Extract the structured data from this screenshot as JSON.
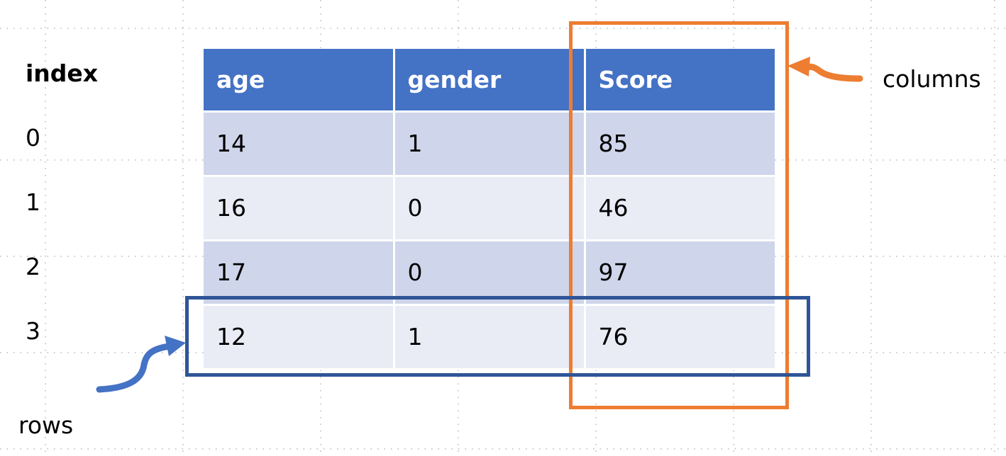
{
  "index": {
    "header": "index",
    "values": [
      "0",
      "1",
      "2",
      "3"
    ]
  },
  "table": {
    "columns": [
      "age",
      "gender",
      "Score"
    ],
    "rows": [
      [
        "14",
        "1",
        "85"
      ],
      [
        "16",
        "0",
        "46"
      ],
      [
        "17",
        "0",
        "97"
      ],
      [
        "12",
        "1",
        "76"
      ]
    ]
  },
  "annotations": {
    "columns_label": "columns",
    "rows_label": "rows"
  },
  "colors": {
    "header_fill": "#4472c4",
    "row_dark": "#cfd5ea",
    "row_light": "#e9ebf5",
    "columns_highlight": "#ed7d31",
    "rows_highlight": "#2f5597",
    "rows_arrow": "#4472c4"
  }
}
